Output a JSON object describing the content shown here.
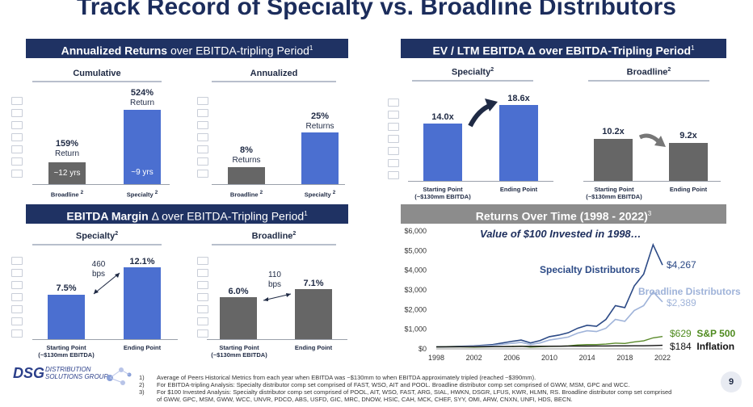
{
  "title": "Track Record of Specialty vs. Broadline Distributors",
  "panels": {
    "returns": {
      "banner_bold": "Annualized Returns",
      "banner_rest": " over EBITDA-tripling Period",
      "sup": "1",
      "cumulative": "Cumulative",
      "annualized": "Annualized"
    },
    "ev": {
      "banner": "EV / LTM EBITDA Δ over EBITDA-Tripling Period",
      "sup": "1",
      "specialty": "Specialty",
      "broadline": "Broadline",
      "sup2": "2"
    },
    "margin": {
      "banner_bold": "EBITDA Margin",
      "banner_rest": " Δ over EBITDA-Tripling Period",
      "sup": "1",
      "specialty": "Specialty",
      "broadline": "Broadline",
      "sup2": "2"
    },
    "over_time": {
      "banner": "Returns Over Time (1998 - 2022)",
      "sup": "3",
      "headline": "Value of $100 Invested in 1998…"
    }
  },
  "chart_data": [
    {
      "type": "bar",
      "title": "Cumulative",
      "categories": [
        "Broadline",
        "Specialty"
      ],
      "values": [
        159,
        524
      ],
      "value_labels": [
        "159%",
        "524%"
      ],
      "sub_labels": [
        "Return",
        "Return"
      ],
      "inner_labels": [
        "~12 yrs",
        "~9 yrs"
      ],
      "sup": "2"
    },
    {
      "type": "bar",
      "title": "Annualized",
      "categories": [
        "Broadline",
        "Specialty"
      ],
      "values": [
        8,
        25
      ],
      "value_labels": [
        "8%",
        "25%"
      ],
      "sub_labels": [
        "Returns",
        "Returns"
      ],
      "sup": "2"
    },
    {
      "type": "bar",
      "title": "Specialty",
      "categories": [
        "Starting Point\n(~$130mm EBITDA)",
        "Ending Point"
      ],
      "values": [
        14.0,
        18.6
      ],
      "value_labels": [
        "14.0x",
        "18.6x"
      ]
    },
    {
      "type": "bar",
      "title": "Broadline",
      "categories": [
        "Starting Point\n(~$130mm EBITDA)",
        "Ending Point"
      ],
      "values": [
        10.2,
        9.2
      ],
      "value_labels": [
        "10.2x",
        "9.2x"
      ]
    },
    {
      "type": "bar",
      "title": "Specialty",
      "categories": [
        "Starting Point\n(~$130mm EBITDA)",
        "Ending Point"
      ],
      "values": [
        7.5,
        12.1
      ],
      "value_labels": [
        "7.5%",
        "12.1%"
      ],
      "delta": "460\nbps"
    },
    {
      "type": "bar",
      "title": "Broadline",
      "categories": [
        "Starting Point\n(~$130mm EBITDA)",
        "Ending Point"
      ],
      "values": [
        6.0,
        7.1
      ],
      "value_labels": [
        "6.0%",
        "7.1%"
      ],
      "delta": "110\nbps"
    },
    {
      "type": "line",
      "title": "Value of $100 Invested in 1998…",
      "ylim": [
        0,
        6000
      ],
      "yticks": [
        "$0",
        "$1,000",
        "$2,000",
        "$3,000",
        "$4,000",
        "$5,000",
        "$6,000"
      ],
      "xticks": [
        "1998",
        "2002",
        "2006",
        "2010",
        "2014",
        "2018",
        "2022"
      ],
      "x": [
        1998,
        2000,
        2002,
        2004,
        2006,
        2007,
        2008,
        2009,
        2010,
        2011,
        2012,
        2013,
        2014,
        2015,
        2016,
        2017,
        2018,
        2019,
        2020,
        2021,
        2022
      ],
      "series": [
        {
          "name": "Specialty Distributors",
          "end_label": "$4,267",
          "color": "#2c4a86",
          "values": [
            100,
            120,
            150,
            220,
            380,
            450,
            300,
            420,
            620,
            700,
            820,
            1050,
            1200,
            1150,
            1500,
            2200,
            2100,
            3200,
            3800,
            5300,
            4267
          ]
        },
        {
          "name": "Broadline Distributors",
          "end_label": "$2,389",
          "color": "#9fb3d9",
          "values": [
            100,
            110,
            130,
            180,
            280,
            330,
            220,
            300,
            450,
            520,
            600,
            800,
            920,
            880,
            1050,
            1500,
            1400,
            1950,
            2200,
            2900,
            2389
          ]
        },
        {
          "name": "S&P 500",
          "end_label": "$629",
          "color": "#5a8a2a",
          "values": [
            100,
            110,
            90,
            110,
            120,
            135,
            90,
            110,
            125,
            130,
            150,
            195,
            220,
            220,
            245,
            290,
            275,
            350,
            410,
            560,
            629
          ]
        },
        {
          "name": "Inflation",
          "end_label": "$184",
          "color": "#111111",
          "values": [
            100,
            105,
            110,
            116,
            122,
            126,
            130,
            130,
            133,
            137,
            140,
            142,
            144,
            145,
            147,
            150,
            153,
            156,
            158,
            166,
            184
          ]
        }
      ]
    }
  ],
  "footer": {
    "logo_mark": "DSG",
    "logo_line1": "DISTRIBUTION",
    "logo_line2": "SOLUTIONS GROUP",
    "notes": [
      {
        "num": "1)",
        "text": "Average of Peers Historical Metrics from each year when EBITDA was ~$130mm to when EBITDA approximately tripled (reached ~$390mm)."
      },
      {
        "num": "2)",
        "text": "For EBITDA-tripling Analysis: Specialty distributor comp set comprised of FAST, WSO, AIT and POOL. Broadline distributor comp set comprised of GWW, MSM, GPC and WCC."
      },
      {
        "num": "3)",
        "text": "For $100 Invested Analysis: Specialty distributor comp set comprised of POOL, AIT, WSO, FAST, ARG, SIAL, HWKN, DSGR, LFUS, KWR, HLMN, RS. Broadline distributor comp set comprised"
      },
      {
        "num": "",
        "text": "of GWW, GPC, MSM, GWW, WCC, UNVR, PDCO, ABS, USFD, GIC, MRC, DNOW, HSIC, CAH, MCK, CHEF, SYY, OMI, ARW, CNXN, UNFI, HDS, BECN."
      }
    ],
    "page": "9"
  }
}
